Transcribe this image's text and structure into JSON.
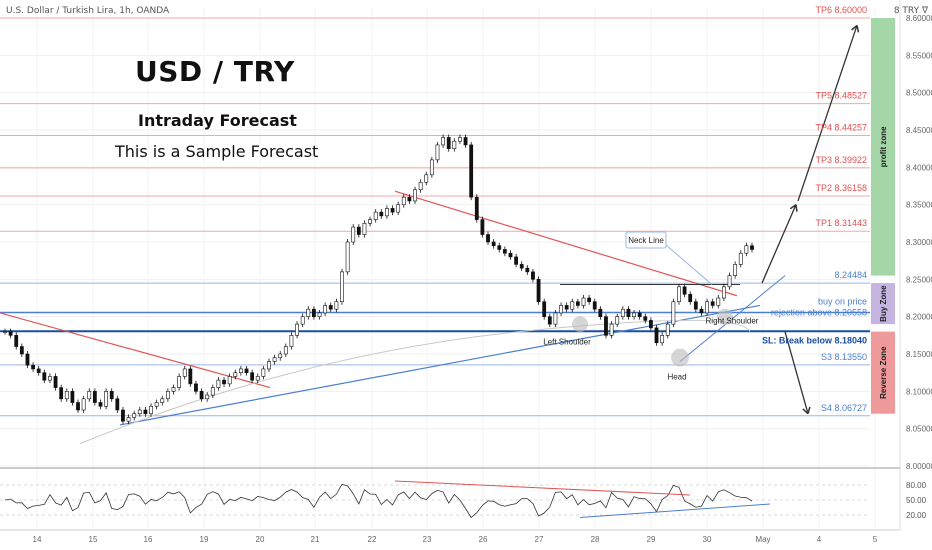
{
  "header": {
    "symbol_text": "U.S. Dollar / Turkish Lira, 1h, OANDA",
    "currency": "8 TRY ∇"
  },
  "annotations": {
    "title": "USD / TRY",
    "subtitle": "Intraday Forecast",
    "note": "This is a Sample Forecast",
    "neck_line": "Neck Line",
    "left_shoulder": "Left Shoulder",
    "right_shoulder": "Right Shoulder",
    "head": "Head",
    "buy_on_price": "buy on price",
    "rejection": "rejection above 8.20558",
    "sl": "SL: Break below 8.18040"
  },
  "zones": {
    "profit": "profit zone",
    "buy": "Buy Zone",
    "reverse": "Reverse Zone"
  },
  "colors": {
    "tp_line": "#f0a8a8",
    "tp_text": "#e05050",
    "blue_line": "#4a7fd0",
    "dark_blue": "#1a4fa0",
    "profit_zone": "#a5d6a7",
    "buy_zone": "#c5b5e0",
    "reverse_zone": "#ef9a9a",
    "candle_up": "#000000",
    "candle_down": "#000000"
  },
  "chart_data": {
    "type": "candlestick",
    "price_axis": {
      "min": 8.0,
      "max": 8.6,
      "ticks": [
        "8.60000",
        "8.55000",
        "8.50000",
        "8.45000",
        "8.40000",
        "8.35000",
        "8.30000",
        "8.25000",
        "8.20000",
        "8.15000",
        "8.10000",
        "8.05000",
        "8.00000"
      ]
    },
    "time_axis": {
      "labels": [
        "14",
        "15",
        "16",
        "19",
        "20",
        "21",
        "22",
        "23",
        "26",
        "27",
        "28",
        "29",
        "30",
        "May",
        "4",
        "5"
      ]
    },
    "levels": [
      {
        "label": "TP6 8.60000",
        "value": 8.6,
        "kind": "tp"
      },
      {
        "label": "TP5 8.48527",
        "value": 8.48527,
        "kind": "tp"
      },
      {
        "label": "TP4 8.44257",
        "value": 8.44257,
        "kind": "tp"
      },
      {
        "label": "TP3 8.39922",
        "value": 8.39922,
        "kind": "tp"
      },
      {
        "label": "TP2 8.36158",
        "value": 8.36158,
        "kind": "tp"
      },
      {
        "label": "TP1 8.31443",
        "value": 8.31443,
        "kind": "tp"
      },
      {
        "label": "8.24484",
        "value": 8.24484,
        "kind": "support"
      },
      {
        "label": "",
        "value": 8.20558,
        "kind": "entry"
      },
      {
        "label": "",
        "value": 8.1804,
        "kind": "sl"
      },
      {
        "label": "S3 8.13550",
        "value": 8.1355,
        "kind": "support"
      },
      {
        "label": "S4 8.06727",
        "value": 8.06727,
        "kind": "support"
      }
    ],
    "price_path": [
      8.18,
      8.175,
      8.16,
      8.15,
      8.135,
      8.13,
      8.125,
      8.115,
      8.12,
      8.105,
      8.09,
      8.1,
      8.085,
      8.075,
      8.09,
      8.1,
      8.085,
      8.08,
      8.1,
      8.09,
      8.075,
      8.06,
      8.065,
      8.07,
      8.075,
      8.07,
      8.08,
      8.085,
      8.09,
      8.1,
      8.105,
      8.12,
      8.13,
      8.11,
      8.1,
      8.09,
      8.095,
      8.105,
      8.115,
      8.11,
      8.12,
      8.125,
      8.13,
      8.125,
      8.115,
      8.12,
      8.13,
      8.14,
      8.145,
      8.15,
      8.16,
      8.175,
      8.19,
      8.2,
      8.21,
      8.2,
      8.205,
      8.215,
      8.21,
      8.22,
      8.26,
      8.3,
      8.32,
      8.31,
      8.325,
      8.33,
      8.34,
      8.335,
      8.345,
      8.34,
      8.35,
      8.36,
      8.355,
      8.37,
      8.38,
      8.39,
      8.41,
      8.43,
      8.44,
      8.425,
      8.435,
      8.44,
      8.43,
      8.36,
      8.33,
      8.31,
      8.3,
      8.295,
      8.29,
      8.285,
      8.28,
      8.27,
      8.265,
      8.26,
      8.25,
      8.22,
      8.2,
      8.19,
      8.205,
      8.215,
      8.21,
      8.22,
      8.215,
      8.225,
      8.22,
      8.21,
      8.2,
      8.175,
      8.19,
      8.2,
      8.21,
      8.2,
      8.205,
      8.2,
      8.195,
      8.185,
      8.165,
      8.175,
      8.19,
      8.22,
      8.24,
      8.23,
      8.22,
      8.21,
      8.205,
      8.22,
      8.215,
      8.225,
      8.24,
      8.255,
      8.27,
      8.285,
      8.295,
      8.29
    ],
    "rsi": {
      "levels": [
        "80.00",
        "50.00",
        "20.00"
      ]
    }
  }
}
